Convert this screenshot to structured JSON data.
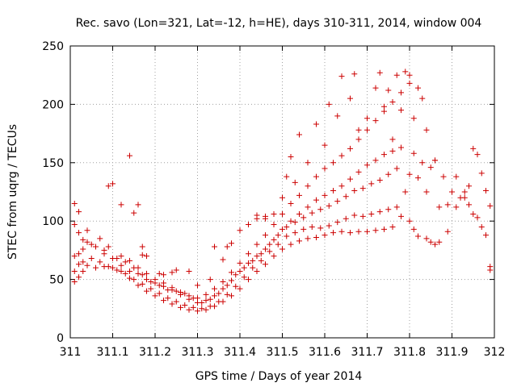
{
  "chart_data": {
    "type": "scatter",
    "title": "Rec. savo (Lon=321, Lat=-12, h=HE), days 310-311, 2014, window 004",
    "xlabel": "GPS time / Days of year 2014",
    "ylabel": "STEC from uqrg / TECUs",
    "xlim": [
      311,
      312
    ],
    "ylim": [
      0,
      250
    ],
    "x_ticks": [
      311,
      311.1,
      311.2,
      311.3,
      311.4,
      311.5,
      311.6,
      311.7,
      311.8,
      311.9,
      312
    ],
    "x_tick_labels": [
      "311",
      "311.1",
      "311.2",
      "311.3",
      "311.4",
      "311.5",
      "311.6",
      "311.7",
      "311.8",
      "311.9",
      "312"
    ],
    "y_ticks": [
      0,
      50,
      100,
      150,
      200,
      250
    ],
    "y_tick_labels": [
      "0",
      "50",
      "100",
      "150",
      "200",
      "250"
    ],
    "grid": true,
    "marker": "+",
    "color": "#cc0000",
    "series": [
      {
        "points": [
          [
            311.01,
            48
          ],
          [
            311.02,
            52
          ],
          [
            311.03,
            57
          ],
          [
            311.04,
            62
          ],
          [
            311.06,
            60
          ],
          [
            311.08,
            61
          ],
          [
            311.1,
            60
          ],
          [
            311.12,
            57
          ],
          [
            311.14,
            51
          ],
          [
            311.16,
            45
          ],
          [
            311.18,
            40
          ],
          [
            311.2,
            36
          ],
          [
            311.22,
            32
          ],
          [
            311.24,
            29
          ],
          [
            311.26,
            26
          ],
          [
            311.28,
            24
          ],
          [
            311.3,
            23
          ],
          [
            311.32,
            24
          ],
          [
            311.34,
            27
          ],
          [
            311.36,
            31
          ],
          [
            311.38,
            36
          ],
          [
            311.4,
            42
          ],
          [
            311.42,
            50
          ],
          [
            311.44,
            57
          ],
          [
            311.46,
            63
          ],
          [
            311.48,
            70
          ],
          [
            311.5,
            76
          ],
          [
            311.52,
            80
          ],
          [
            311.54,
            83
          ],
          [
            311.56,
            85
          ],
          [
            311.58,
            86
          ],
          [
            311.6,
            88
          ],
          [
            311.62,
            90
          ],
          [
            311.64,
            91
          ],
          [
            311.66,
            90
          ],
          [
            311.68,
            91
          ],
          [
            311.7,
            91
          ],
          [
            311.72,
            92
          ],
          [
            311.74,
            93
          ],
          [
            311.76,
            95
          ]
        ]
      },
      {
        "points": [
          [
            311.01,
            57
          ],
          [
            311.02,
            63
          ],
          [
            311.03,
            65
          ],
          [
            311.05,
            68
          ],
          [
            311.07,
            65
          ],
          [
            311.09,
            61
          ],
          [
            311.11,
            58
          ],
          [
            311.13,
            55
          ],
          [
            311.15,
            50
          ],
          [
            311.17,
            46
          ],
          [
            311.19,
            42
          ],
          [
            311.21,
            38
          ],
          [
            311.23,
            34
          ],
          [
            311.25,
            31
          ],
          [
            311.27,
            28
          ],
          [
            311.29,
            26
          ],
          [
            311.31,
            25
          ],
          [
            311.33,
            27
          ],
          [
            311.35,
            31
          ],
          [
            311.37,
            37
          ],
          [
            311.39,
            44
          ],
          [
            311.41,
            52
          ],
          [
            311.43,
            60
          ],
          [
            311.45,
            66
          ],
          [
            311.47,
            74
          ],
          [
            311.49,
            80
          ],
          [
            311.51,
            87
          ],
          [
            311.53,
            90
          ],
          [
            311.55,
            93
          ],
          [
            311.57,
            95
          ],
          [
            311.59,
            94
          ],
          [
            311.61,
            96
          ],
          [
            311.63,
            99
          ],
          [
            311.65,
            102
          ],
          [
            311.67,
            105
          ],
          [
            311.69,
            104
          ],
          [
            311.71,
            106
          ],
          [
            311.73,
            108
          ],
          [
            311.75,
            110
          ],
          [
            311.77,
            112
          ]
        ]
      },
      {
        "points": [
          [
            311.01,
            70
          ],
          [
            311.02,
            72
          ],
          [
            311.03,
            76
          ],
          [
            311.04,
            82
          ],
          [
            311.06,
            78
          ],
          [
            311.08,
            75
          ],
          [
            311.11,
            68
          ],
          [
            311.13,
            65
          ],
          [
            311.15,
            60
          ],
          [
            311.17,
            54
          ],
          [
            311.19,
            48
          ],
          [
            311.21,
            45
          ],
          [
            311.23,
            41
          ],
          [
            311.25,
            40
          ],
          [
            311.27,
            38
          ],
          [
            311.29,
            34
          ],
          [
            311.31,
            30
          ],
          [
            311.33,
            33
          ],
          [
            311.35,
            38
          ],
          [
            311.37,
            45
          ],
          [
            311.39,
            54
          ],
          [
            311.41,
            60
          ],
          [
            311.43,
            66
          ],
          [
            311.45,
            72
          ],
          [
            311.47,
            80
          ],
          [
            311.49,
            88
          ],
          [
            311.51,
            95
          ],
          [
            311.53,
            99
          ],
          [
            311.55,
            103
          ],
          [
            311.57,
            107
          ],
          [
            311.59,
            110
          ],
          [
            311.61,
            113
          ],
          [
            311.63,
            117
          ],
          [
            311.65,
            121
          ],
          [
            311.67,
            126
          ],
          [
            311.69,
            128
          ],
          [
            311.71,
            132
          ],
          [
            311.73,
            135
          ],
          [
            311.75,
            140
          ],
          [
            311.77,
            145
          ]
        ]
      },
      {
        "points": [
          [
            311.01,
            97
          ],
          [
            311.02,
            90
          ],
          [
            311.03,
            84
          ],
          [
            311.05,
            80
          ],
          [
            311.08,
            72
          ],
          [
            311.1,
            68
          ],
          [
            311.12,
            62
          ],
          [
            311.14,
            57
          ],
          [
            311.16,
            55
          ],
          [
            311.18,
            50
          ],
          [
            311.2,
            47
          ],
          [
            311.22,
            44
          ],
          [
            311.24,
            41
          ],
          [
            311.26,
            37
          ],
          [
            311.28,
            33
          ],
          [
            311.3,
            30
          ],
          [
            311.32,
            32
          ],
          [
            311.34,
            36
          ],
          [
            311.36,
            42
          ],
          [
            311.38,
            49
          ],
          [
            311.4,
            57
          ],
          [
            311.42,
            64
          ],
          [
            311.44,
            70
          ],
          [
            311.46,
            76
          ],
          [
            311.48,
            84
          ],
          [
            311.5,
            93
          ],
          [
            311.52,
            100
          ],
          [
            311.54,
            106
          ],
          [
            311.56,
            112
          ],
          [
            311.58,
            118
          ],
          [
            311.6,
            122
          ],
          [
            311.62,
            126
          ],
          [
            311.64,
            130
          ],
          [
            311.66,
            136
          ],
          [
            311.68,
            142
          ],
          [
            311.7,
            148
          ],
          [
            311.72,
            152
          ],
          [
            311.74,
            157
          ],
          [
            311.76,
            160
          ],
          [
            311.78,
            163
          ]
        ]
      },
      {
        "points": [
          [
            311.01,
            115
          ],
          [
            311.02,
            108
          ],
          [
            311.04,
            92
          ],
          [
            311.07,
            85
          ],
          [
            311.09,
            78
          ],
          [
            311.12,
            70
          ],
          [
            311.14,
            66
          ],
          [
            311.16,
            60
          ],
          [
            311.18,
            55
          ],
          [
            311.2,
            50
          ],
          [
            311.22,
            47
          ],
          [
            311.24,
            43
          ],
          [
            311.26,
            39
          ],
          [
            311.28,
            36
          ],
          [
            311.3,
            34
          ],
          [
            311.32,
            37
          ],
          [
            311.34,
            42
          ],
          [
            311.36,
            48
          ],
          [
            311.38,
            56
          ],
          [
            311.4,
            64
          ],
          [
            311.42,
            72
          ],
          [
            311.44,
            80
          ],
          [
            311.46,
            88
          ],
          [
            311.48,
            97
          ],
          [
            311.5,
            106
          ],
          [
            311.52,
            115
          ],
          [
            311.54,
            122
          ],
          [
            311.56,
            130
          ],
          [
            311.58,
            138
          ],
          [
            311.6,
            145
          ],
          [
            311.62,
            150
          ],
          [
            311.64,
            156
          ],
          [
            311.66,
            162
          ],
          [
            311.68,
            170
          ],
          [
            311.7,
            178
          ],
          [
            311.72,
            186
          ],
          [
            311.74,
            194
          ],
          [
            311.76,
            202
          ],
          [
            311.78,
            210
          ],
          [
            311.8,
            218
          ]
        ]
      },
      {
        "points": [
          [
            311.44,
            102
          ],
          [
            311.46,
            104
          ],
          [
            311.48,
            106
          ],
          [
            311.5,
            120
          ],
          [
            311.51,
            138
          ],
          [
            311.52,
            155
          ],
          [
            311.53,
            133
          ],
          [
            311.54,
            174
          ],
          [
            311.56,
            150
          ],
          [
            311.58,
            183
          ],
          [
            311.6,
            165
          ],
          [
            311.61,
            200
          ],
          [
            311.63,
            190
          ],
          [
            311.64,
            224
          ],
          [
            311.66,
            205
          ],
          [
            311.67,
            226
          ],
          [
            311.68,
            178
          ],
          [
            311.7,
            188
          ],
          [
            311.72,
            214
          ],
          [
            311.73,
            227
          ],
          [
            311.74,
            198
          ],
          [
            311.75,
            212
          ],
          [
            311.76,
            170
          ],
          [
            311.77,
            225
          ],
          [
            311.78,
            195
          ],
          [
            311.79,
            228
          ],
          [
            311.8,
            225
          ],
          [
            311.81,
            188
          ],
          [
            311.82,
            214
          ],
          [
            311.83,
            205
          ],
          [
            311.84,
            178
          ],
          [
            311.86,
            152
          ]
        ]
      },
      {
        "points": [
          [
            311.78,
            104
          ],
          [
            311.79,
            125
          ],
          [
            311.8,
            140
          ],
          [
            311.81,
            158
          ],
          [
            311.82,
            137
          ],
          [
            311.83,
            150
          ],
          [
            311.84,
            125
          ],
          [
            311.85,
            146
          ],
          [
            311.86,
            152
          ],
          [
            311.87,
            112
          ],
          [
            311.88,
            138
          ],
          [
            311.89,
            114
          ],
          [
            311.9,
            125
          ],
          [
            311.91,
            138
          ],
          [
            311.92,
            120
          ],
          [
            311.93,
            125
          ],
          [
            311.94,
            130
          ],
          [
            311.95,
            162
          ],
          [
            311.96,
            157
          ],
          [
            311.97,
            141
          ],
          [
            311.98,
            126
          ],
          [
            311.99,
            113
          ]
        ]
      },
      {
        "points": [
          [
            311.8,
            100
          ],
          [
            311.81,
            93
          ],
          [
            311.82,
            87
          ],
          [
            311.84,
            85
          ],
          [
            311.85,
            82
          ],
          [
            311.86,
            80
          ],
          [
            311.87,
            82
          ],
          [
            311.89,
            91
          ],
          [
            311.91,
            112
          ],
          [
            311.93,
            120
          ],
          [
            311.94,
            114
          ],
          [
            311.95,
            106
          ],
          [
            311.96,
            103
          ],
          [
            311.97,
            95
          ],
          [
            311.98,
            88
          ],
          [
            311.99,
            61
          ],
          [
            311.99,
            58
          ]
        ]
      },
      {
        "points": [
          [
            311.09,
            130
          ],
          [
            311.1,
            132
          ],
          [
            311.12,
            114
          ],
          [
            311.14,
            156
          ],
          [
            311.15,
            107
          ],
          [
            311.16,
            114
          ],
          [
            311.17,
            78
          ],
          [
            311.17,
            71
          ],
          [
            311.18,
            70
          ],
          [
            311.21,
            55
          ],
          [
            311.22,
            54
          ],
          [
            311.24,
            56
          ],
          [
            311.25,
            58
          ],
          [
            311.28,
            57
          ],
          [
            311.3,
            45
          ],
          [
            311.33,
            50
          ],
          [
            311.34,
            78
          ],
          [
            311.36,
            67
          ],
          [
            311.37,
            78
          ],
          [
            311.38,
            81
          ],
          [
            311.4,
            92
          ],
          [
            311.42,
            97
          ],
          [
            311.44,
            105
          ],
          [
            311.46,
            102
          ]
        ]
      }
    ]
  }
}
